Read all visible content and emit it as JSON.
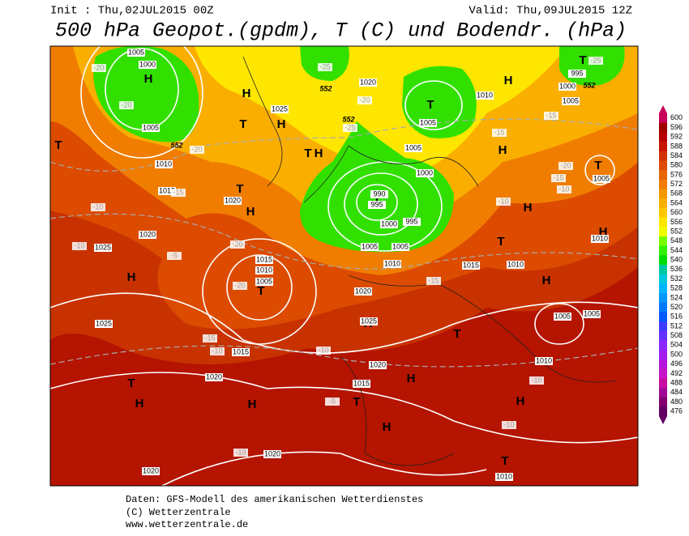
{
  "header": {
    "init": "Init : Thu,02JUL2015 00Z",
    "valid": "Valid: Thu,09JUL2015 12Z",
    "title": "500 hPa Geopot.(gpdm), T (C) und Bodendr. (hPa)"
  },
  "colorbar": {
    "ticks": [
      600,
      596,
      592,
      588,
      584,
      580,
      576,
      572,
      568,
      564,
      560,
      556,
      552,
      548,
      544,
      540,
      536,
      532,
      528,
      524,
      520,
      516,
      512,
      508,
      504,
      500,
      496,
      492,
      488,
      484,
      480,
      476
    ],
    "colors": [
      "#c8005a",
      "#a00000",
      "#b40000",
      "#c81400",
      "#d23200",
      "#dc4b00",
      "#e66400",
      "#f07d00",
      "#f59600",
      "#faaf00",
      "#ffc800",
      "#ffe600",
      "#f0ff00",
      "#78ff00",
      "#32f000",
      "#00dc00",
      "#00c8a0",
      "#00c8dc",
      "#00b4ff",
      "#0096ff",
      "#0078ff",
      "#005aff",
      "#3c3cff",
      "#6432ff",
      "#8c28ff",
      "#a01ef0",
      "#b414dc",
      "#c814c8",
      "#c80aa0",
      "#a00a96",
      "#82006e",
      "#640064"
    ]
  },
  "map_labels": {
    "pressure_centers": [
      "H",
      "H",
      "T",
      "H",
      "T",
      "H",
      "T",
      "H",
      "T",
      "T",
      "H",
      "T",
      "H",
      "T",
      "H",
      "H",
      "T",
      "H",
      "T",
      "H",
      "H",
      "T",
      "T",
      "H",
      "H",
      "H",
      "T",
      "H",
      "H",
      "T",
      "T"
    ],
    "isobar_labels": [
      "1005",
      "1000",
      "1005",
      "1010",
      "1015",
      "1020",
      "1020",
      "1025",
      "1025",
      "1020",
      "1010",
      "1005",
      "1005",
      "1000",
      "990",
      "995",
      "1000",
      "995",
      "1005",
      "1005",
      "1010",
      "1015",
      "1010",
      "1010",
      "1015",
      "1010",
      "1005",
      "1020",
      "1025",
      "1025",
      "1015",
      "1020",
      "1020",
      "1015",
      "1020",
      "1020",
      "1010",
      "1005",
      "1005",
      "1010",
      "1005",
      "1000",
      "995",
      "1005"
    ],
    "temperature_labels": [
      "-20",
      "-20",
      "-20",
      "-15",
      "-10",
      "-10",
      "-5",
      "-20",
      "-20",
      "-15",
      "-10",
      "-10",
      "-15",
      "-10",
      "-15",
      "-20",
      "-15",
      "-10",
      "-10",
      "-10",
      "-10",
      "-5",
      "-25",
      "-25",
      "-20",
      "-25",
      "-15"
    ],
    "height_labels": [
      "552",
      "552",
      "552",
      "552"
    ]
  },
  "footer": {
    "source": "Daten: GFS-Modell des amerikanischen Wetterdienstes",
    "copyright": "(C) Wetterzentrale",
    "url": "www.wetterzentrale.de"
  }
}
